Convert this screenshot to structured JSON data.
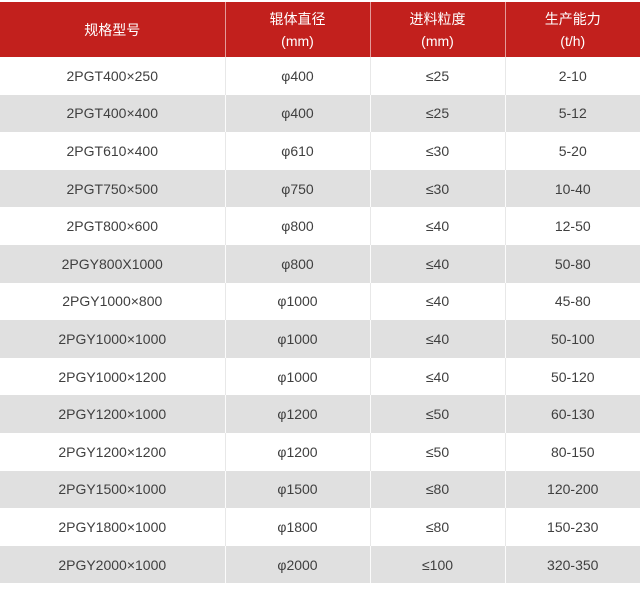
{
  "table": {
    "name": "roller-crusher-specification-table",
    "columns": [
      {
        "line1": "规格型号",
        "line2": ""
      },
      {
        "line1": "辊体直径",
        "line2": "(mm)"
      },
      {
        "line1": "进料粒度",
        "line2": "(mm)"
      },
      {
        "line1": "生产能力",
        "line2": "(t/h)"
      }
    ],
    "rows": [
      [
        "2PGT400×250",
        "φ400",
        "≤25",
        "2-10"
      ],
      [
        "2PGT400×400",
        "φ400",
        "≤25",
        "5-12"
      ],
      [
        "2PGT610×400",
        "φ610",
        "≤30",
        "5-20"
      ],
      [
        "2PGT750×500",
        "φ750",
        "≤30",
        "10-40"
      ],
      [
        "2PGT800×600",
        "φ800",
        "≤40",
        "12-50"
      ],
      [
        "2PGY800X1000",
        "φ800",
        "≤40",
        "50-80"
      ],
      [
        "2PGY1000×800",
        "φ1000",
        "≤40",
        "45-80"
      ],
      [
        "2PGY1000×1000",
        "φ1000",
        "≤40",
        "50-100"
      ],
      [
        "2PGY1000×1200",
        "φ1000",
        "≤40",
        "50-120"
      ],
      [
        "2PGY1200×1000",
        "φ1200",
        "≤50",
        "60-130"
      ],
      [
        "2PGY1200×1200",
        "φ1200",
        "≤50",
        "80-150"
      ],
      [
        "2PGY1500×1000",
        "φ1500",
        "≤80",
        "120-200"
      ],
      [
        "2PGY1800×1000",
        "φ1800",
        "≤80",
        "150-230"
      ],
      [
        "2PGY2000×1000",
        "φ2000",
        "≤100",
        "320-350"
      ]
    ]
  },
  "colors": {
    "header_bg": "#c2201d",
    "header_text": "#ffffff",
    "row_bg": "#ffffff",
    "row_alt_bg": "#e0e0e0",
    "cell_text": "#3f3f3f",
    "divider_on_white": "#e8e8e8",
    "divider_on_gray": "#fbfbfb"
  }
}
